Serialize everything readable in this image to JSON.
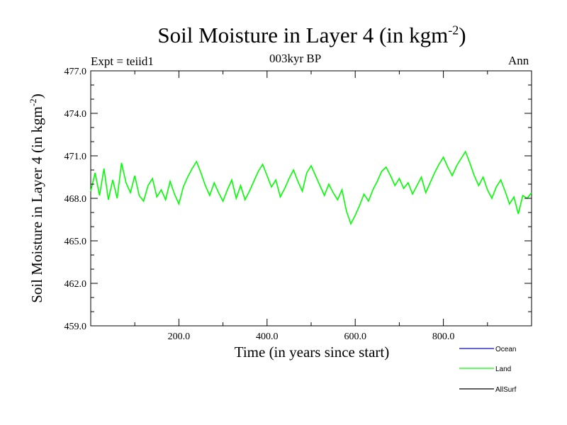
{
  "title": {
    "main": "Soil Moisture in Layer 4 (in kgm",
    "sup": "-2",
    "close": ")"
  },
  "subtitle": "003kyr BP",
  "expt_label": "Expt = teiid1",
  "period_label": "Ann",
  "xlabel": "Time (in years since start)",
  "ylabel": {
    "main": "Soil Moisture in Layer 4 (in kgm",
    "sup": "-2",
    "close": ")"
  },
  "colors": {
    "Ocean": "#0000ff",
    "Land": "#00ff00",
    "AllSurf": "#000000"
  },
  "chart_data": {
    "type": "line",
    "title": "Soil Moisture in Layer 4 (in kgm-2)",
    "xlabel": "Time (in years since start)",
    "ylabel": "Soil Moisture in Layer 4 (in kgm-2)",
    "xlim": [
      0,
      1000
    ],
    "ylim": [
      459.0,
      477.0
    ],
    "xticks": [
      200,
      400,
      600,
      800
    ],
    "xtick_labels": [
      "200.0",
      "400.0",
      "600.0",
      "800.0"
    ],
    "yticks": [
      459,
      462,
      465,
      468,
      471,
      474,
      477
    ],
    "ytick_labels": [
      "459.0",
      "462.0",
      "465.0",
      "468.0",
      "471.0",
      "474.0",
      "477.0"
    ],
    "grid": false,
    "legend_position": "bottom-right",
    "legend": [
      "Ocean",
      "Land",
      "AllSurf"
    ],
    "series": [
      {
        "name": "Land",
        "color": "#00ff00",
        "x": [
          0,
          10,
          20,
          30,
          40,
          50,
          60,
          70,
          80,
          90,
          100,
          110,
          120,
          130,
          140,
          150,
          160,
          170,
          180,
          190,
          200,
          210,
          220,
          230,
          240,
          250,
          260,
          270,
          280,
          290,
          300,
          310,
          320,
          330,
          340,
          350,
          360,
          370,
          380,
          390,
          400,
          410,
          420,
          430,
          440,
          450,
          460,
          470,
          480,
          490,
          500,
          510,
          520,
          530,
          540,
          550,
          560,
          570,
          580,
          590,
          600,
          610,
          620,
          630,
          640,
          650,
          660,
          670,
          680,
          690,
          700,
          710,
          720,
          730,
          740,
          750,
          760,
          770,
          780,
          790,
          800,
          810,
          820,
          830,
          840,
          850,
          860,
          870,
          880,
          890,
          900,
          910,
          920,
          930,
          940,
          950,
          960,
          970,
          980,
          990,
          1000
        ],
        "values": [
          468.5,
          469.8,
          468.2,
          470.1,
          467.9,
          469.3,
          468.0,
          470.5,
          469.1,
          468.4,
          469.6,
          468.2,
          467.8,
          468.9,
          469.4,
          468.1,
          468.6,
          467.9,
          469.2,
          468.3,
          467.6,
          468.8,
          469.5,
          470.1,
          470.6,
          469.8,
          468.9,
          468.2,
          469.1,
          468.4,
          467.8,
          468.6,
          469.3,
          468.0,
          468.9,
          467.9,
          468.5,
          469.2,
          469.9,
          470.4,
          469.6,
          468.8,
          469.3,
          468.1,
          468.7,
          469.4,
          470.0,
          469.2,
          468.5,
          469.8,
          470.3,
          469.6,
          468.9,
          468.2,
          469.0,
          468.4,
          467.9,
          468.6,
          467.1,
          466.2,
          466.8,
          467.5,
          468.3,
          467.8,
          468.6,
          469.2,
          469.9,
          470.2,
          469.6,
          468.9,
          469.4,
          468.7,
          469.1,
          468.3,
          468.9,
          469.5,
          468.4,
          469.1,
          469.8,
          470.4,
          470.9,
          470.2,
          469.6,
          470.3,
          470.8,
          471.3,
          470.5,
          469.6,
          468.9,
          469.5,
          468.6,
          468.0,
          468.8,
          469.3,
          468.5,
          467.6,
          468.1,
          466.9,
          468.2,
          468.0,
          468.4
        ]
      },
      {
        "name": "Ocean",
        "color": "#0000ff",
        "values": []
      },
      {
        "name": "AllSurf",
        "color": "#000000",
        "values": []
      }
    ]
  }
}
